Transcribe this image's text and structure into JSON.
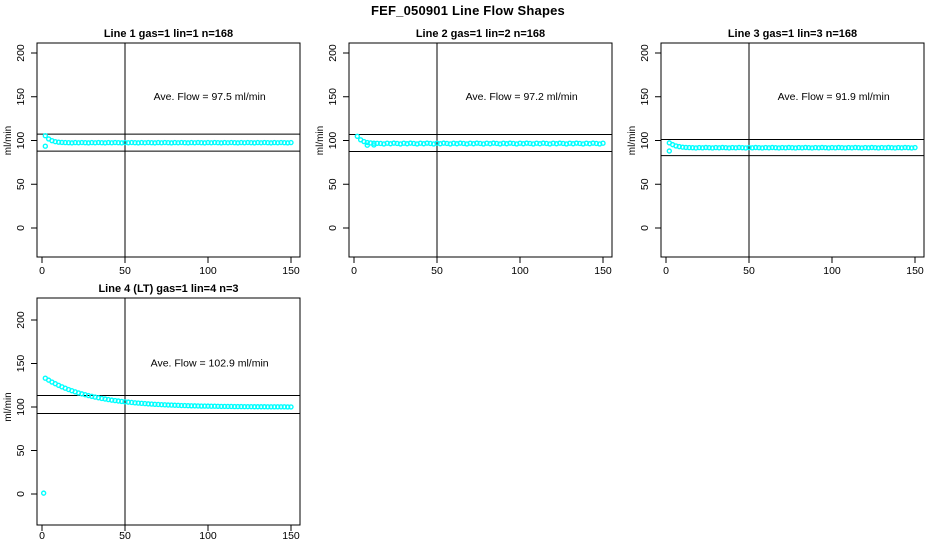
{
  "page_title": "FEF_050901  Line Flow Shapes",
  "accent_color": "#00FFFF",
  "axis_color": "#000000",
  "chart_data": [
    {
      "type": "scatter",
      "title": "Line 1 gas=1 lin=1 n=168",
      "xlabel": "",
      "ylabel": "ml/min",
      "xlim": [
        0,
        150
      ],
      "ylim": [
        0,
        200
      ],
      "xticks": [
        0,
        50,
        100,
        150
      ],
      "yticks": [
        0,
        50,
        100,
        150,
        200
      ],
      "annotation": "Ave. Flow =  97.5  ml/min",
      "ave_flow": 97.5,
      "ref_lines_y": [
        107.3,
        87.8
      ],
      "ref_line_x": 50,
      "marker": "open-circle",
      "color": "#00FFFF",
      "points": [
        [
          2,
          105.5
        ],
        [
          2,
          93.5
        ],
        [
          4,
          101.8
        ],
        [
          6,
          99.8
        ],
        [
          8,
          98.7
        ],
        [
          10,
          98.1
        ],
        [
          12,
          97.8
        ],
        [
          14,
          97.6
        ],
        [
          16,
          97.5
        ],
        [
          18,
          97.3
        ],
        [
          20,
          97.6
        ],
        [
          22,
          97.4
        ],
        [
          24,
          97.7
        ],
        [
          26,
          97.5
        ],
        [
          28,
          97.3
        ],
        [
          30,
          97.6
        ],
        [
          32,
          97.4
        ],
        [
          34,
          97.7
        ],
        [
          36,
          97.5
        ],
        [
          38,
          97.3
        ],
        [
          40,
          97.6
        ],
        [
          42,
          97.4
        ],
        [
          44,
          97.7
        ],
        [
          46,
          97.5
        ],
        [
          48,
          97.3
        ],
        [
          50,
          97.6
        ],
        [
          52,
          97.4
        ],
        [
          54,
          97.7
        ],
        [
          56,
          97.5
        ],
        [
          58,
          97.3
        ],
        [
          60,
          97.6
        ],
        [
          62,
          97.4
        ],
        [
          64,
          97.7
        ],
        [
          66,
          97.5
        ],
        [
          68,
          97.3
        ],
        [
          70,
          97.6
        ],
        [
          72,
          97.4
        ],
        [
          74,
          97.7
        ],
        [
          76,
          97.5
        ],
        [
          78,
          97.3
        ],
        [
          80,
          97.6
        ],
        [
          82,
          97.4
        ],
        [
          84,
          97.7
        ],
        [
          86,
          97.5
        ],
        [
          88,
          97.3
        ],
        [
          90,
          97.6
        ],
        [
          92,
          97.4
        ],
        [
          94,
          97.7
        ],
        [
          96,
          97.5
        ],
        [
          98,
          97.3
        ],
        [
          100,
          97.6
        ],
        [
          102,
          97.4
        ],
        [
          104,
          97.7
        ],
        [
          106,
          97.5
        ],
        [
          108,
          97.3
        ],
        [
          110,
          97.6
        ],
        [
          112,
          97.4
        ],
        [
          114,
          97.7
        ],
        [
          116,
          97.5
        ],
        [
          118,
          97.3
        ],
        [
          120,
          97.6
        ],
        [
          122,
          97.4
        ],
        [
          124,
          97.7
        ],
        [
          126,
          97.5
        ],
        [
          128,
          97.3
        ],
        [
          130,
          97.6
        ],
        [
          132,
          97.4
        ],
        [
          134,
          97.7
        ],
        [
          136,
          97.5
        ],
        [
          138,
          97.3
        ],
        [
          140,
          97.6
        ],
        [
          142,
          97.4
        ],
        [
          144,
          97.7
        ],
        [
          146,
          97.5
        ],
        [
          148,
          97.3
        ],
        [
          150,
          97.6
        ]
      ]
    },
    {
      "type": "scatter",
      "title": "Line 2 gas=1 lin=2 n=168",
      "xlabel": "",
      "ylabel": "ml/min",
      "xlim": [
        0,
        150
      ],
      "ylim": [
        0,
        200
      ],
      "xticks": [
        0,
        50,
        100,
        150
      ],
      "yticks": [
        0,
        50,
        100,
        150,
        200
      ],
      "annotation": "Ave. Flow =  97.2  ml/min",
      "ave_flow": 97.2,
      "ref_lines_y": [
        106.9,
        87.5
      ],
      "ref_line_x": 50,
      "marker": "open-circle",
      "color": "#00FFFF",
      "points": [
        [
          2,
          104.8
        ],
        [
          4,
          100.8
        ],
        [
          6,
          98.8
        ],
        [
          8,
          97.7
        ],
        [
          8,
          94.6
        ],
        [
          10,
          97.2
        ],
        [
          12,
          96.9
        ],
        [
          12,
          94.9
        ],
        [
          14,
          96.8
        ],
        [
          16,
          96.6
        ],
        [
          18,
          96.1
        ],
        [
          20,
          96.9
        ],
        [
          22,
          96.3
        ],
        [
          24,
          97.0
        ],
        [
          26,
          96.6
        ],
        [
          28,
          96.1
        ],
        [
          30,
          96.9
        ],
        [
          32,
          96.3
        ],
        [
          34,
          97.0
        ],
        [
          36,
          96.6
        ],
        [
          38,
          96.1
        ],
        [
          40,
          96.9
        ],
        [
          42,
          96.3
        ],
        [
          44,
          97.0
        ],
        [
          46,
          96.6
        ],
        [
          48,
          96.1
        ],
        [
          50,
          96.9
        ],
        [
          52,
          96.3
        ],
        [
          54,
          97.0
        ],
        [
          56,
          96.6
        ],
        [
          58,
          96.1
        ],
        [
          60,
          96.9
        ],
        [
          62,
          96.3
        ],
        [
          64,
          97.0
        ],
        [
          66,
          96.6
        ],
        [
          68,
          96.1
        ],
        [
          70,
          96.9
        ],
        [
          72,
          96.3
        ],
        [
          74,
          97.0
        ],
        [
          76,
          96.6
        ],
        [
          78,
          96.1
        ],
        [
          80,
          96.9
        ],
        [
          82,
          96.3
        ],
        [
          84,
          97.0
        ],
        [
          86,
          96.6
        ],
        [
          88,
          96.1
        ],
        [
          90,
          96.9
        ],
        [
          92,
          96.3
        ],
        [
          94,
          97.0
        ],
        [
          96,
          96.6
        ],
        [
          98,
          96.1
        ],
        [
          100,
          96.9
        ],
        [
          102,
          96.3
        ],
        [
          104,
          97.0
        ],
        [
          106,
          96.6
        ],
        [
          108,
          96.1
        ],
        [
          110,
          96.9
        ],
        [
          112,
          96.3
        ],
        [
          114,
          97.0
        ],
        [
          116,
          96.6
        ],
        [
          118,
          96.1
        ],
        [
          120,
          96.9
        ],
        [
          122,
          96.3
        ],
        [
          124,
          97.0
        ],
        [
          126,
          96.6
        ],
        [
          128,
          96.1
        ],
        [
          130,
          96.9
        ],
        [
          132,
          96.3
        ],
        [
          134,
          97.0
        ],
        [
          136,
          96.6
        ],
        [
          138,
          96.1
        ],
        [
          140,
          96.9
        ],
        [
          142,
          96.3
        ],
        [
          144,
          97.0
        ],
        [
          146,
          96.6
        ],
        [
          148,
          96.1
        ],
        [
          150,
          96.9
        ]
      ]
    },
    {
      "type": "scatter",
      "title": "Line 3 gas=1 lin=3 n=168",
      "xlabel": "",
      "ylabel": "ml/min",
      "xlim": [
        0,
        150
      ],
      "ylim": [
        0,
        200
      ],
      "xticks": [
        0,
        50,
        100,
        150
      ],
      "yticks": [
        0,
        50,
        100,
        150,
        200
      ],
      "annotation": "Ave. Flow =  91.9  ml/min",
      "ave_flow": 91.9,
      "ref_lines_y": [
        101.1,
        82.7
      ],
      "ref_line_x": 50,
      "marker": "open-circle",
      "color": "#00FFFF",
      "points": [
        [
          2,
          88.0
        ],
        [
          2,
          97.3
        ],
        [
          4,
          95.3
        ],
        [
          6,
          93.8
        ],
        [
          8,
          93.0
        ],
        [
          10,
          92.4
        ],
        [
          12,
          92.1
        ],
        [
          14,
          91.9
        ],
        [
          16,
          91.8
        ],
        [
          18,
          91.5
        ],
        [
          20,
          91.9
        ],
        [
          22,
          91.6
        ],
        [
          24,
          92.0
        ],
        [
          26,
          91.8
        ],
        [
          28,
          91.5
        ],
        [
          30,
          91.9
        ],
        [
          32,
          91.6
        ],
        [
          34,
          92.0
        ],
        [
          36,
          91.8
        ],
        [
          38,
          91.5
        ],
        [
          40,
          91.9
        ],
        [
          42,
          91.6
        ],
        [
          44,
          92.0
        ],
        [
          46,
          91.8
        ],
        [
          48,
          91.5
        ],
        [
          50,
          91.9
        ],
        [
          52,
          91.6
        ],
        [
          54,
          92.0
        ],
        [
          56,
          91.8
        ],
        [
          58,
          91.5
        ],
        [
          60,
          91.9
        ],
        [
          62,
          91.6
        ],
        [
          64,
          92.0
        ],
        [
          66,
          91.8
        ],
        [
          68,
          91.5
        ],
        [
          70,
          91.9
        ],
        [
          72,
          91.6
        ],
        [
          74,
          92.0
        ],
        [
          76,
          91.8
        ],
        [
          78,
          91.5
        ],
        [
          80,
          91.9
        ],
        [
          82,
          91.6
        ],
        [
          84,
          92.0
        ],
        [
          86,
          91.8
        ],
        [
          88,
          91.5
        ],
        [
          90,
          91.9
        ],
        [
          92,
          91.6
        ],
        [
          94,
          92.0
        ],
        [
          96,
          91.8
        ],
        [
          98,
          91.5
        ],
        [
          100,
          91.9
        ],
        [
          102,
          91.6
        ],
        [
          104,
          92.0
        ],
        [
          106,
          91.8
        ],
        [
          108,
          91.5
        ],
        [
          110,
          91.9
        ],
        [
          112,
          91.6
        ],
        [
          114,
          92.0
        ],
        [
          116,
          91.8
        ],
        [
          118,
          91.5
        ],
        [
          120,
          91.9
        ],
        [
          122,
          91.6
        ],
        [
          124,
          92.0
        ],
        [
          126,
          91.8
        ],
        [
          128,
          91.5
        ],
        [
          130,
          91.9
        ],
        [
          132,
          91.6
        ],
        [
          134,
          92.0
        ],
        [
          136,
          91.8
        ],
        [
          138,
          91.5
        ],
        [
          140,
          91.9
        ],
        [
          142,
          91.6
        ],
        [
          144,
          92.0
        ],
        [
          146,
          91.8
        ],
        [
          148,
          91.5
        ],
        [
          150,
          91.9
        ]
      ]
    },
    {
      "type": "scatter",
      "title": "Line 4 (LT) gas=1 lin=4 n=3",
      "xlabel": "",
      "ylabel": "ml/min",
      "xlim": [
        0,
        150
      ],
      "ylim": [
        0,
        200
      ],
      "xticks": [
        0,
        50,
        100,
        150
      ],
      "yticks": [
        0,
        50,
        100,
        150,
        200
      ],
      "annotation": "Ave. Flow =  102.9  ml/min",
      "ave_flow": 102.9,
      "ref_lines_y": [
        113.2,
        92.6
      ],
      "ref_line_x": 50,
      "marker": "open-circle",
      "color": "#00FFFF",
      "points": [
        [
          1,
          1.0
        ],
        [
          2,
          133.1
        ],
        [
          4,
          130.9
        ],
        [
          6,
          128.7
        ],
        [
          8,
          126.8
        ],
        [
          10,
          124.9
        ],
        [
          12,
          123.2
        ],
        [
          14,
          121.6
        ],
        [
          16,
          120.1
        ],
        [
          18,
          118.7
        ],
        [
          20,
          117.4
        ],
        [
          22,
          116.2
        ],
        [
          24,
          115.1
        ],
        [
          26,
          114.1
        ],
        [
          28,
          113.1
        ],
        [
          30,
          112.2
        ],
        [
          32,
          111.4
        ],
        [
          34,
          110.6
        ],
        [
          36,
          109.8
        ],
        [
          38,
          109.2
        ],
        [
          40,
          108.5
        ],
        [
          42,
          107.9
        ],
        [
          44,
          107.4
        ],
        [
          46,
          106.9
        ],
        [
          48,
          106.4
        ],
        [
          50,
          106.0
        ],
        [
          52,
          105.6
        ],
        [
          54,
          105.2
        ],
        [
          56,
          104.8
        ],
        [
          58,
          104.5
        ],
        [
          60,
          104.2
        ],
        [
          62,
          103.9
        ],
        [
          64,
          103.6
        ],
        [
          66,
          103.4
        ],
        [
          68,
          103.1
        ],
        [
          70,
          102.9
        ],
        [
          72,
          102.7
        ],
        [
          74,
          102.5
        ],
        [
          76,
          102.3
        ],
        [
          78,
          102.2
        ],
        [
          80,
          102.0
        ],
        [
          82,
          101.9
        ],
        [
          84,
          101.7
        ],
        [
          86,
          101.6
        ],
        [
          88,
          101.5
        ],
        [
          90,
          101.4
        ],
        [
          92,
          101.3
        ],
        [
          94,
          101.2
        ],
        [
          96,
          101.1
        ],
        [
          98,
          101.1
        ],
        [
          100,
          101.0
        ],
        [
          102,
          100.9
        ],
        [
          104,
          100.9
        ],
        [
          106,
          100.8
        ],
        [
          108,
          100.7
        ],
        [
          110,
          100.7
        ],
        [
          112,
          100.6
        ],
        [
          114,
          100.6
        ],
        [
          116,
          100.5
        ],
        [
          118,
          100.5
        ],
        [
          120,
          100.5
        ],
        [
          122,
          100.4
        ],
        [
          124,
          100.4
        ],
        [
          126,
          100.4
        ],
        [
          128,
          100.3
        ],
        [
          130,
          100.3
        ],
        [
          132,
          100.3
        ],
        [
          134,
          100.3
        ],
        [
          136,
          100.2
        ],
        [
          138,
          100.2
        ],
        [
          140,
          100.2
        ],
        [
          142,
          100.2
        ],
        [
          144,
          100.2
        ],
        [
          146,
          100.2
        ],
        [
          148,
          100.1
        ],
        [
          150,
          100.1
        ]
      ]
    }
  ]
}
